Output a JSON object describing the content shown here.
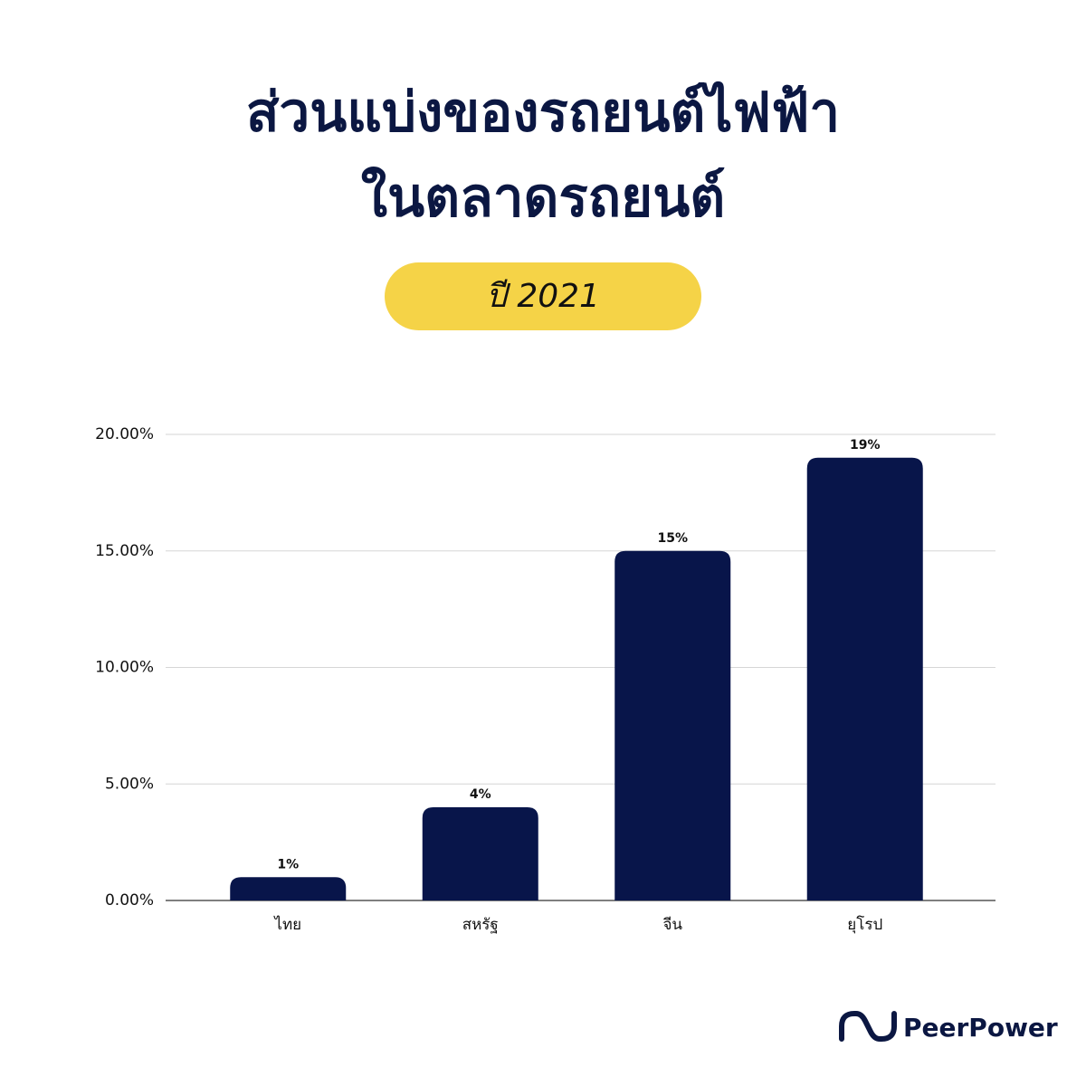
{
  "chart_data": {
    "type": "bar",
    "title": [
      "ส่วนแบ่งของรถยนต์ไฟฟ้า",
      "ในตลาดรถยนต์"
    ],
    "subtitle": "ปี 2021",
    "categories": [
      "ไทย",
      "สหรัฐ",
      "จีน",
      "ยุโรป"
    ],
    "values": [
      1,
      4,
      15,
      19
    ],
    "value_labels": [
      "1%",
      "4%",
      "15%",
      "19%"
    ],
    "color": "#08154a",
    "ylim": [
      0,
      20
    ],
    "yticks": [
      {
        "value": 0,
        "label": "0.00%"
      },
      {
        "value": 5,
        "label": "5.00%"
      },
      {
        "value": 10,
        "label": "10.00%"
      },
      {
        "value": 15,
        "label": "15.00%"
      },
      {
        "value": 20,
        "label": "20.00%"
      }
    ],
    "grid": true
  },
  "brand": "PeerPower"
}
